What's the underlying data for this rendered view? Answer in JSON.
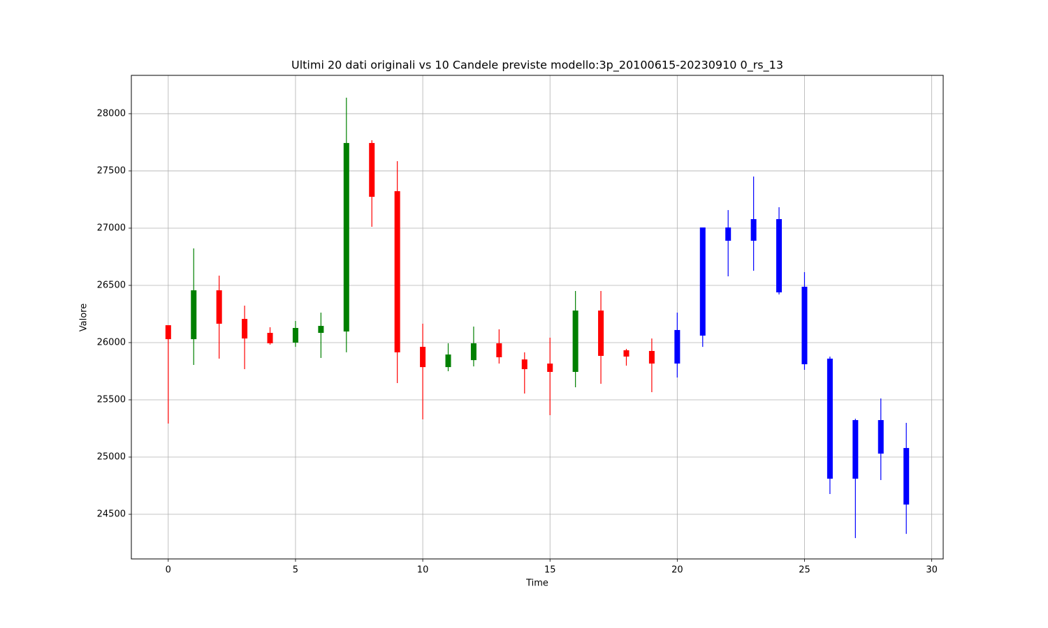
{
  "chart_data": {
    "type": "candlestick",
    "title": "Ultimi 20 dati originali vs 10 Candele previste modello:3p_20100615-20230910 0_rs_13",
    "xlabel": "Time",
    "ylabel": "Valore",
    "x": [
      0,
      1,
      2,
      3,
      4,
      5,
      6,
      7,
      8,
      9,
      10,
      11,
      12,
      13,
      14,
      15,
      16,
      17,
      18,
      19,
      20,
      21,
      22,
      23,
      24,
      25,
      26,
      27,
      28,
      29
    ],
    "open": [
      26152,
      26030,
      26457,
      26207,
      26085,
      26000,
      26085,
      26097,
      27744,
      27323,
      25963,
      25786,
      25847,
      25994,
      25853,
      25817,
      25744,
      26280,
      25933,
      25927,
      25817,
      26061,
      26890,
      26890,
      27079,
      26488,
      25860,
      24811,
      25323,
      25079
    ],
    "high": [
      26152,
      26823,
      26585,
      26323,
      26134,
      26189,
      26262,
      28140,
      27768,
      27585,
      26165,
      25994,
      26140,
      26116,
      25915,
      26043,
      26451,
      26451,
      25945,
      26036,
      26262,
      27006,
      27158,
      27451,
      27183,
      26616,
      25878,
      25335,
      25512,
      25299
    ],
    "low": [
      25293,
      25805,
      25860,
      25768,
      25982,
      25963,
      25866,
      25915,
      27012,
      25646,
      25329,
      25750,
      25792,
      25817,
      25555,
      25366,
      25610,
      25640,
      25799,
      25567,
      25695,
      25963,
      26579,
      26628,
      26421,
      25762,
      24677,
      24292,
      24799,
      24329
    ],
    "close": [
      26030,
      26457,
      26165,
      26036,
      25994,
      26128,
      26146,
      27744,
      27274,
      25915,
      25786,
      25896,
      25994,
      25872,
      25768,
      25744,
      26280,
      25884,
      25878,
      25817,
      26110,
      27006,
      27006,
      27079,
      26439,
      25811,
      24811,
      25323,
      25030,
      24585
    ],
    "colors": [
      "red",
      "green",
      "red",
      "red",
      "red",
      "green",
      "green",
      "green",
      "red",
      "red",
      "red",
      "green",
      "green",
      "red",
      "red",
      "red",
      "green",
      "red",
      "red",
      "red",
      "blue",
      "blue",
      "blue",
      "blue",
      "blue",
      "blue",
      "blue",
      "blue",
      "blue",
      "blue"
    ],
    "xlim": [
      -1.45,
      30.45
    ],
    "ylim": [
      24110,
      28335
    ],
    "xticks": [
      0,
      5,
      10,
      15,
      20,
      25,
      30
    ],
    "yticks": [
      24500,
      25000,
      25500,
      26000,
      26500,
      27000,
      27500,
      28000
    ],
    "grid": true
  }
}
